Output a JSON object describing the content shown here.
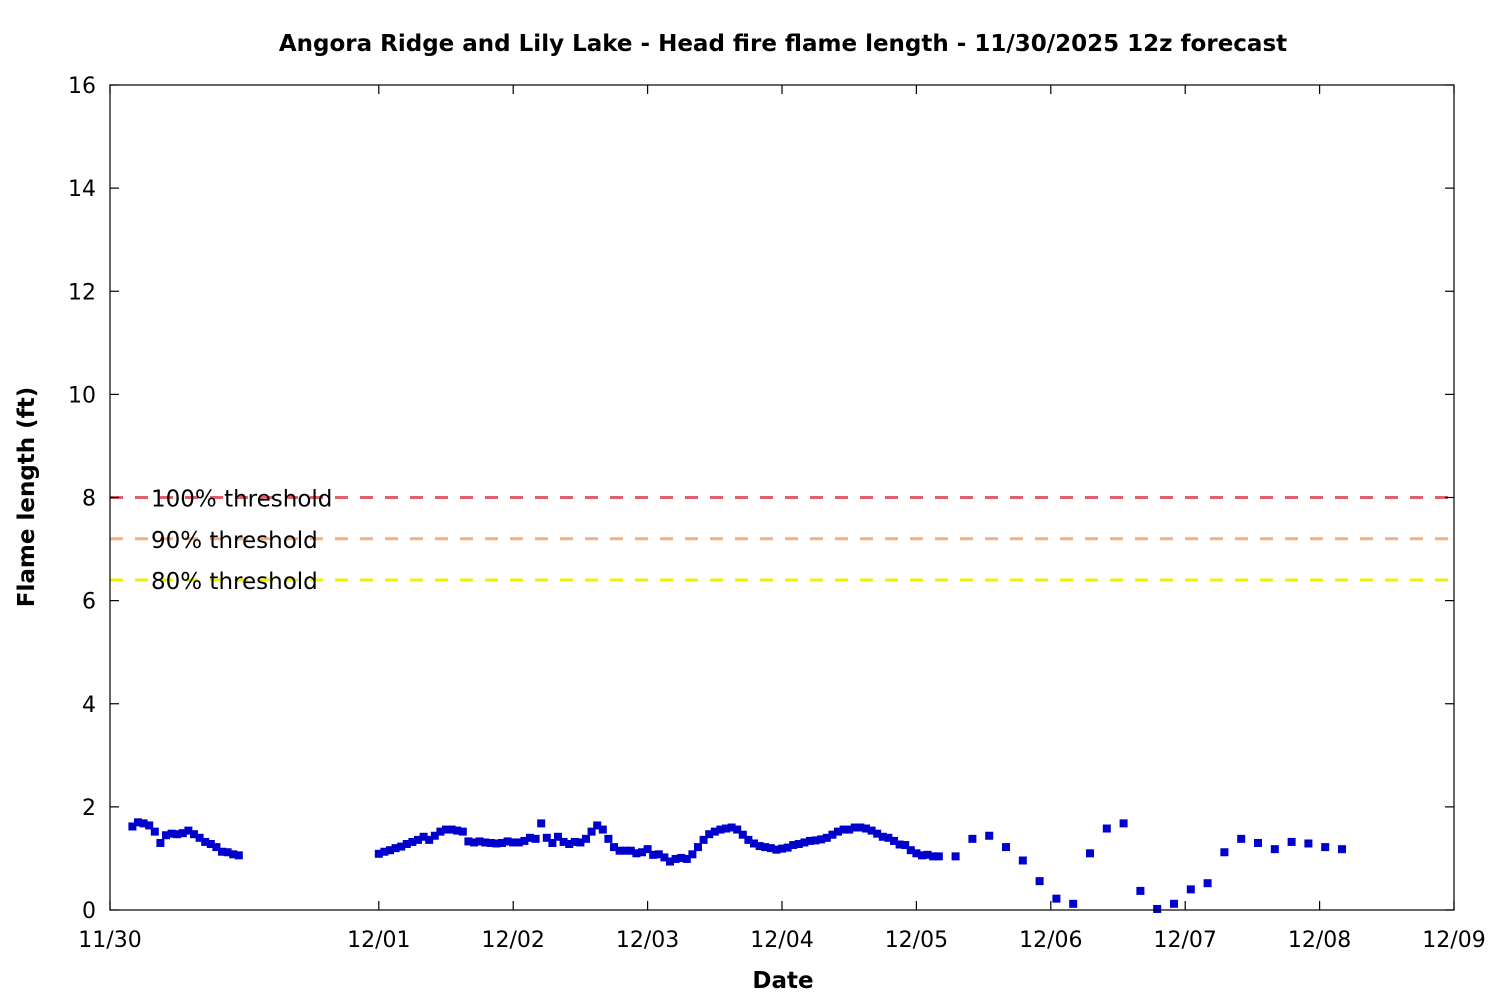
{
  "chart_data": {
    "type": "scatter",
    "title": "Angora Ridge and Lily Lake - Head fire flame length - 11/30/2025 12z forecast",
    "xlabel": "Date",
    "ylabel": "Flame length (ft)",
    "xlim": [
      "11/30",
      "12/09"
    ],
    "ylim": [
      0,
      16
    ],
    "x_ticks": [
      "11/30",
      "12/01",
      "12/02",
      "12/03",
      "12/04",
      "12/05",
      "12/06",
      "12/07",
      "12/08",
      "12/09"
    ],
    "y_ticks": [
      0,
      2,
      4,
      6,
      8,
      10,
      12,
      14,
      16
    ],
    "grid": false,
    "marker_color": "#0000cc",
    "thresholds": [
      {
        "label": "100% threshold",
        "value": 8.0,
        "color": "#e06070"
      },
      {
        "label": "90% threshold",
        "value": 7.2,
        "color": "#f4b080"
      },
      {
        "label": "80% threshold",
        "value": 6.4,
        "color": "#f0f000"
      }
    ],
    "series": [
      {
        "points": [
          [
            "11/30 04:00",
            1.62
          ],
          [
            "11/30 05:00",
            1.7
          ],
          [
            "11/30 06:00",
            1.68
          ],
          [
            "11/30 07:00",
            1.64
          ],
          [
            "11/30 08:00",
            1.52
          ],
          [
            "11/30 09:00",
            1.3
          ],
          [
            "11/30 10:00",
            1.45
          ],
          [
            "11/30 11:00",
            1.48
          ],
          [
            "11/30 12:00",
            1.47
          ],
          [
            "11/30 13:00",
            1.49
          ],
          [
            "11/30 14:00",
            1.54
          ],
          [
            "11/30 15:00",
            1.47
          ],
          [
            "11/30 16:00",
            1.4
          ],
          [
            "11/30 17:00",
            1.32
          ],
          [
            "11/30 18:00",
            1.28
          ],
          [
            "11/30 19:00",
            1.22
          ],
          [
            "11/30 20:00",
            1.13
          ],
          [
            "11/30 21:00",
            1.12
          ],
          [
            "11/30 22:00",
            1.08
          ],
          [
            "11/30 23:00",
            1.06
          ],
          [
            "12/01 00:00",
            1.09
          ],
          [
            "12/01 01:00",
            1.13
          ],
          [
            "12/01 02:00",
            1.16
          ],
          [
            "12/01 03:00",
            1.2
          ],
          [
            "12/01 04:00",
            1.23
          ],
          [
            "12/01 05:00",
            1.28
          ],
          [
            "12/01 06:00",
            1.32
          ],
          [
            "12/01 07:00",
            1.36
          ],
          [
            "12/01 08:00",
            1.42
          ],
          [
            "12/01 09:00",
            1.36
          ],
          [
            "12/01 10:00",
            1.44
          ],
          [
            "12/01 11:00",
            1.52
          ],
          [
            "12/01 12:00",
            1.56
          ],
          [
            "12/01 13:00",
            1.56
          ],
          [
            "12/01 14:00",
            1.54
          ],
          [
            "12/01 15:00",
            1.52
          ],
          [
            "12/01 16:00",
            1.33
          ],
          [
            "12/01 17:00",
            1.31
          ],
          [
            "12/01 18:00",
            1.33
          ],
          [
            "12/01 19:00",
            1.31
          ],
          [
            "12/01 20:00",
            1.3
          ],
          [
            "12/01 21:00",
            1.29
          ],
          [
            "12/01 22:00",
            1.3
          ],
          [
            "12/01 23:00",
            1.33
          ],
          [
            "12/02 00:00",
            1.31
          ],
          [
            "12/02 01:00",
            1.31
          ],
          [
            "12/02 02:00",
            1.34
          ],
          [
            "12/02 03:00",
            1.4
          ],
          [
            "12/02 04:00",
            1.38
          ],
          [
            "12/02 05:00",
            1.68
          ],
          [
            "12/02 06:00",
            1.4
          ],
          [
            "12/02 07:00",
            1.3
          ],
          [
            "12/02 08:00",
            1.42
          ],
          [
            "12/02 09:00",
            1.32
          ],
          [
            "12/02 10:00",
            1.28
          ],
          [
            "12/02 11:00",
            1.32
          ],
          [
            "12/02 12:00",
            1.31
          ],
          [
            "12/02 13:00",
            1.38
          ],
          [
            "12/02 14:00",
            1.52
          ],
          [
            "12/02 15:00",
            1.64
          ],
          [
            "12/02 16:00",
            1.56
          ],
          [
            "12/02 17:00",
            1.38
          ],
          [
            "12/02 18:00",
            1.22
          ],
          [
            "12/02 19:00",
            1.15
          ],
          [
            "12/02 20:00",
            1.15
          ],
          [
            "12/02 21:00",
            1.15
          ],
          [
            "12/02 22:00",
            1.1
          ],
          [
            "12/02 23:00",
            1.12
          ],
          [
            "12/03 00:00",
            1.18
          ],
          [
            "12/03 01:00",
            1.07
          ],
          [
            "12/03 02:00",
            1.08
          ],
          [
            "12/03 03:00",
            1.02
          ],
          [
            "12/03 04:00",
            0.94
          ],
          [
            "12/03 05:00",
            0.99
          ],
          [
            "12/03 06:00",
            1.01
          ],
          [
            "12/03 07:00",
            0.99
          ],
          [
            "12/03 08:00",
            1.08
          ],
          [
            "12/03 09:00",
            1.22
          ],
          [
            "12/03 10:00",
            1.36
          ],
          [
            "12/03 11:00",
            1.47
          ],
          [
            "12/03 12:00",
            1.52
          ],
          [
            "12/03 13:00",
            1.56
          ],
          [
            "12/03 14:00",
            1.58
          ],
          [
            "12/03 15:00",
            1.6
          ],
          [
            "12/03 16:00",
            1.56
          ],
          [
            "12/03 17:00",
            1.46
          ],
          [
            "12/03 18:00",
            1.36
          ],
          [
            "12/03 19:00",
            1.29
          ],
          [
            "12/03 20:00",
            1.24
          ],
          [
            "12/03 21:00",
            1.22
          ],
          [
            "12/03 22:00",
            1.2
          ],
          [
            "12/03 23:00",
            1.17
          ],
          [
            "12/04 00:00",
            1.19
          ],
          [
            "12/04 01:00",
            1.21
          ],
          [
            "12/04 02:00",
            1.26
          ],
          [
            "12/04 03:00",
            1.28
          ],
          [
            "12/04 04:00",
            1.31
          ],
          [
            "12/04 05:00",
            1.34
          ],
          [
            "12/04 06:00",
            1.35
          ],
          [
            "12/04 07:00",
            1.37
          ],
          [
            "12/04 08:00",
            1.4
          ],
          [
            "12/04 09:00",
            1.46
          ],
          [
            "12/04 10:00",
            1.52
          ],
          [
            "12/04 11:00",
            1.56
          ],
          [
            "12/04 12:00",
            1.56
          ],
          [
            "12/04 13:00",
            1.6
          ],
          [
            "12/04 14:00",
            1.6
          ],
          [
            "12/04 15:00",
            1.58
          ],
          [
            "12/04 16:00",
            1.54
          ],
          [
            "12/04 17:00",
            1.48
          ],
          [
            "12/04 18:00",
            1.42
          ],
          [
            "12/04 19:00",
            1.4
          ],
          [
            "12/04 20:00",
            1.34
          ],
          [
            "12/04 21:00",
            1.27
          ],
          [
            "12/04 22:00",
            1.26
          ],
          [
            "12/04 23:00",
            1.16
          ],
          [
            "12/05 00:00",
            1.1
          ],
          [
            "12/05 01:00",
            1.06
          ],
          [
            "12/05 02:00",
            1.07
          ],
          [
            "12/05 03:00",
            1.04
          ],
          [
            "12/05 04:00",
            1.04
          ],
          [
            "12/05 07:00",
            1.04
          ],
          [
            "12/05 10:00",
            1.38
          ],
          [
            "12/05 13:00",
            1.44
          ],
          [
            "12/05 16:00",
            1.22
          ],
          [
            "12/05 19:00",
            0.96
          ],
          [
            "12/05 22:00",
            0.56
          ],
          [
            "12/06 01:00",
            0.22
          ],
          [
            "12/06 04:00",
            0.12
          ],
          [
            "12/06 07:00",
            1.1
          ],
          [
            "12/06 10:00",
            1.58
          ],
          [
            "12/06 13:00",
            1.68
          ],
          [
            "12/06 16:00",
            0.37
          ],
          [
            "12/06 19:00",
            0.02
          ],
          [
            "12/06 22:00",
            0.12
          ],
          [
            "12/07 01:00",
            0.4
          ],
          [
            "12/07 04:00",
            0.52
          ],
          [
            "12/07 07:00",
            1.12
          ],
          [
            "12/07 10:00",
            1.38
          ],
          [
            "12/07 13:00",
            1.3
          ],
          [
            "12/07 16:00",
            1.18
          ],
          [
            "12/07 19:00",
            1.32
          ],
          [
            "12/07 22:00",
            1.29
          ],
          [
            "12/08 01:00",
            1.22
          ],
          [
            "12/08 04:00",
            1.18
          ]
        ]
      }
    ]
  }
}
